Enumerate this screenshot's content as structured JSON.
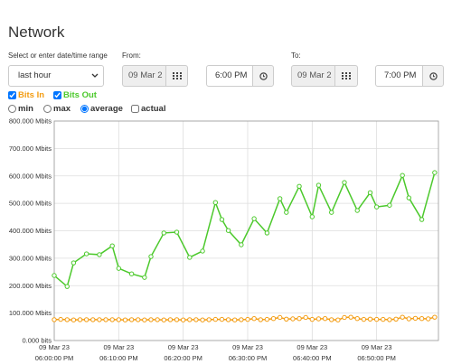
{
  "header": {
    "title": "Network"
  },
  "controls": {
    "range_label": "Select or enter date/time range",
    "range_select": "last hour",
    "from_label": "From:",
    "from_date": "09 Mar 2",
    "from_time": "6:00 PM",
    "to_label": "To:",
    "to_date": "09 Mar 2",
    "to_time": "7:00 PM",
    "modes": [
      "min",
      "max",
      "average",
      "actual"
    ]
  },
  "chart_data": {
    "type": "line",
    "xlim": [
      "2023-03-09T18:00:00",
      "2023-03-09T18:59:35"
    ],
    "xticks": [
      {
        "value": "2023-03-09T18:00:00",
        "label": [
          "09 Mar 23",
          "06:00:00 PM"
        ]
      },
      {
        "value": "2023-03-09T18:10:00",
        "label": [
          "09 Mar 23",
          "06:10:00 PM"
        ]
      },
      {
        "value": "2023-03-09T18:20:00",
        "label": [
          "09 Mar 23",
          "06:20:00 PM"
        ]
      },
      {
        "value": "2023-03-09T18:30:00",
        "label": [
          "09 Mar 23",
          "06:30:00 PM"
        ]
      },
      {
        "value": "2023-03-09T18:40:00",
        "label": [
          "09 Mar 23",
          "06:40:00 PM"
        ]
      },
      {
        "value": "2023-03-09T18:50:00",
        "label": [
          "09 Mar 23",
          "06:50:00 PM"
        ]
      }
    ],
    "ylim": [
      0,
      800
    ],
    "yticks": [
      {
        "value": 0,
        "label": "0.000 bits"
      },
      {
        "value": 100,
        "label": "100.000 Mbits"
      },
      {
        "value": 200,
        "label": "200.000 Mbits"
      },
      {
        "value": 300,
        "label": "300.000 Mbits"
      },
      {
        "value": 400,
        "label": "400.000 Mbits"
      },
      {
        "value": 500,
        "label": "500.000 Mbits"
      },
      {
        "value": 600,
        "label": "600.000 Mbits"
      },
      {
        "value": 700,
        "label": "700.000 Mbits"
      },
      {
        "value": 800,
        "label": "800.000 Mbits"
      }
    ],
    "grid": true,
    "series": [
      {
        "name": "Bits In",
        "color": "#f39c12",
        "x": [
          "2023-03-09T18:00:00",
          "2023-03-09T18:01:00",
          "2023-03-09T18:02:00",
          "2023-03-09T18:03:00",
          "2023-03-09T18:04:00",
          "2023-03-09T18:05:00",
          "2023-03-09T18:06:00",
          "2023-03-09T18:07:00",
          "2023-03-09T18:08:00",
          "2023-03-09T18:09:00",
          "2023-03-09T18:10:00",
          "2023-03-09T18:11:00",
          "2023-03-09T18:12:00",
          "2023-03-09T18:13:00",
          "2023-03-09T18:14:00",
          "2023-03-09T18:15:00",
          "2023-03-09T18:16:00",
          "2023-03-09T18:17:00",
          "2023-03-09T18:18:00",
          "2023-03-09T18:19:00",
          "2023-03-09T18:20:00",
          "2023-03-09T18:21:00",
          "2023-03-09T18:22:00",
          "2023-03-09T18:23:00",
          "2023-03-09T18:24:00",
          "2023-03-09T18:25:00",
          "2023-03-09T18:26:00",
          "2023-03-09T18:27:00",
          "2023-03-09T18:28:00",
          "2023-03-09T18:29:00",
          "2023-03-09T18:30:00",
          "2023-03-09T18:31:00",
          "2023-03-09T18:32:00",
          "2023-03-09T18:33:00",
          "2023-03-09T18:34:00",
          "2023-03-09T18:35:00",
          "2023-03-09T18:36:00",
          "2023-03-09T18:37:00",
          "2023-03-09T18:38:00",
          "2023-03-09T18:39:00",
          "2023-03-09T18:40:00",
          "2023-03-09T18:41:00",
          "2023-03-09T18:42:00",
          "2023-03-09T18:43:00",
          "2023-03-09T18:44:00",
          "2023-03-09T18:45:00",
          "2023-03-09T18:46:00",
          "2023-03-09T18:47:00",
          "2023-03-09T18:48:00",
          "2023-03-09T18:49:00",
          "2023-03-09T18:50:00",
          "2023-03-09T18:51:00",
          "2023-03-09T18:52:00",
          "2023-03-09T18:53:00",
          "2023-03-09T18:54:00",
          "2023-03-09T18:55:00",
          "2023-03-09T18:56:00",
          "2023-03-09T18:57:00",
          "2023-03-09T18:58:00",
          "2023-03-09T18:59:00"
        ],
        "values": [
          76,
          77,
          76,
          75,
          76,
          76,
          76,
          76,
          76,
          76,
          76,
          75,
          76,
          76,
          75,
          76,
          76,
          75,
          76,
          76,
          75,
          76,
          76,
          75,
          76,
          77,
          77,
          76,
          75,
          76,
          77,
          80,
          76,
          77,
          80,
          84,
          78,
          79,
          80,
          84,
          77,
          79,
          80,
          76,
          75,
          84,
          85,
          80,
          77,
          78,
          77,
          77,
          76,
          78,
          85,
          79,
          81,
          80,
          79,
          85
        ]
      },
      {
        "name": "Bits Out",
        "color": "#4cc92c",
        "x": [
          "2023-03-09T18:00:00",
          "2023-03-09T18:02:00",
          "2023-03-09T18:03:00",
          "2023-03-09T18:05:00",
          "2023-03-09T18:07:00",
          "2023-03-09T18:09:00",
          "2023-03-09T18:10:00",
          "2023-03-09T18:12:00",
          "2023-03-09T18:14:00",
          "2023-03-09T18:15:00",
          "2023-03-09T18:17:00",
          "2023-03-09T18:19:00",
          "2023-03-09T18:21:00",
          "2023-03-09T18:23:00",
          "2023-03-09T18:25:00",
          "2023-03-09T18:26:00",
          "2023-03-09T18:27:00",
          "2023-03-09T18:29:00",
          "2023-03-09T18:31:00",
          "2023-03-09T18:33:00",
          "2023-03-09T18:35:00",
          "2023-03-09T18:36:00",
          "2023-03-09T18:38:00",
          "2023-03-09T18:40:00",
          "2023-03-09T18:41:00",
          "2023-03-09T18:43:00",
          "2023-03-09T18:45:00",
          "2023-03-09T18:47:00",
          "2023-03-09T18:49:00",
          "2023-03-09T18:50:00",
          "2023-03-09T18:52:00",
          "2023-03-09T18:54:00",
          "2023-03-09T18:55:00",
          "2023-03-09T18:57:00",
          "2023-03-09T18:59:00"
        ],
        "values": [
          237,
          197,
          283,
          316,
          313,
          345,
          263,
          243,
          230,
          306,
          392,
          395,
          303,
          326,
          503,
          441,
          401,
          349,
          444,
          392,
          517,
          467,
          562,
          451,
          566,
          467,
          576,
          474,
          539,
          487,
          493,
          602,
          520,
          441,
          612
        ]
      }
    ]
  }
}
